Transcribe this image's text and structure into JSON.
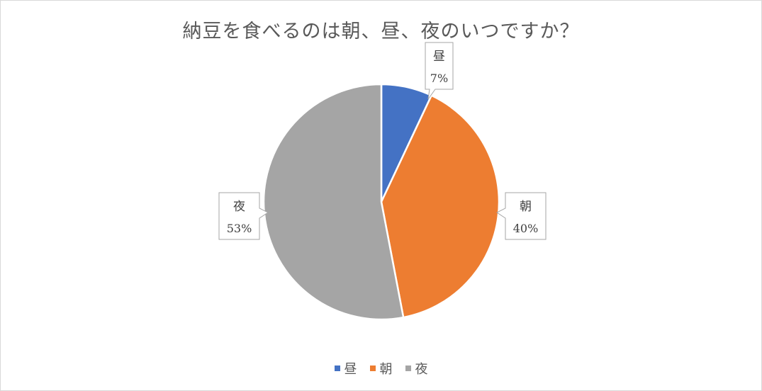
{
  "chart_data": {
    "type": "pie",
    "title": "納豆を食べるのは朝、昼、夜のいつですか？",
    "categories": [
      "昼",
      "朝",
      "夜"
    ],
    "values": [
      7,
      40,
      53
    ],
    "value_labels": [
      "7%",
      "40%",
      "53%"
    ],
    "colors": [
      "#4472c4",
      "#ed7d31",
      "#a5a5a5"
    ],
    "legend_position": "bottom",
    "start_angle_deg": 0,
    "direction": "clockwise"
  }
}
